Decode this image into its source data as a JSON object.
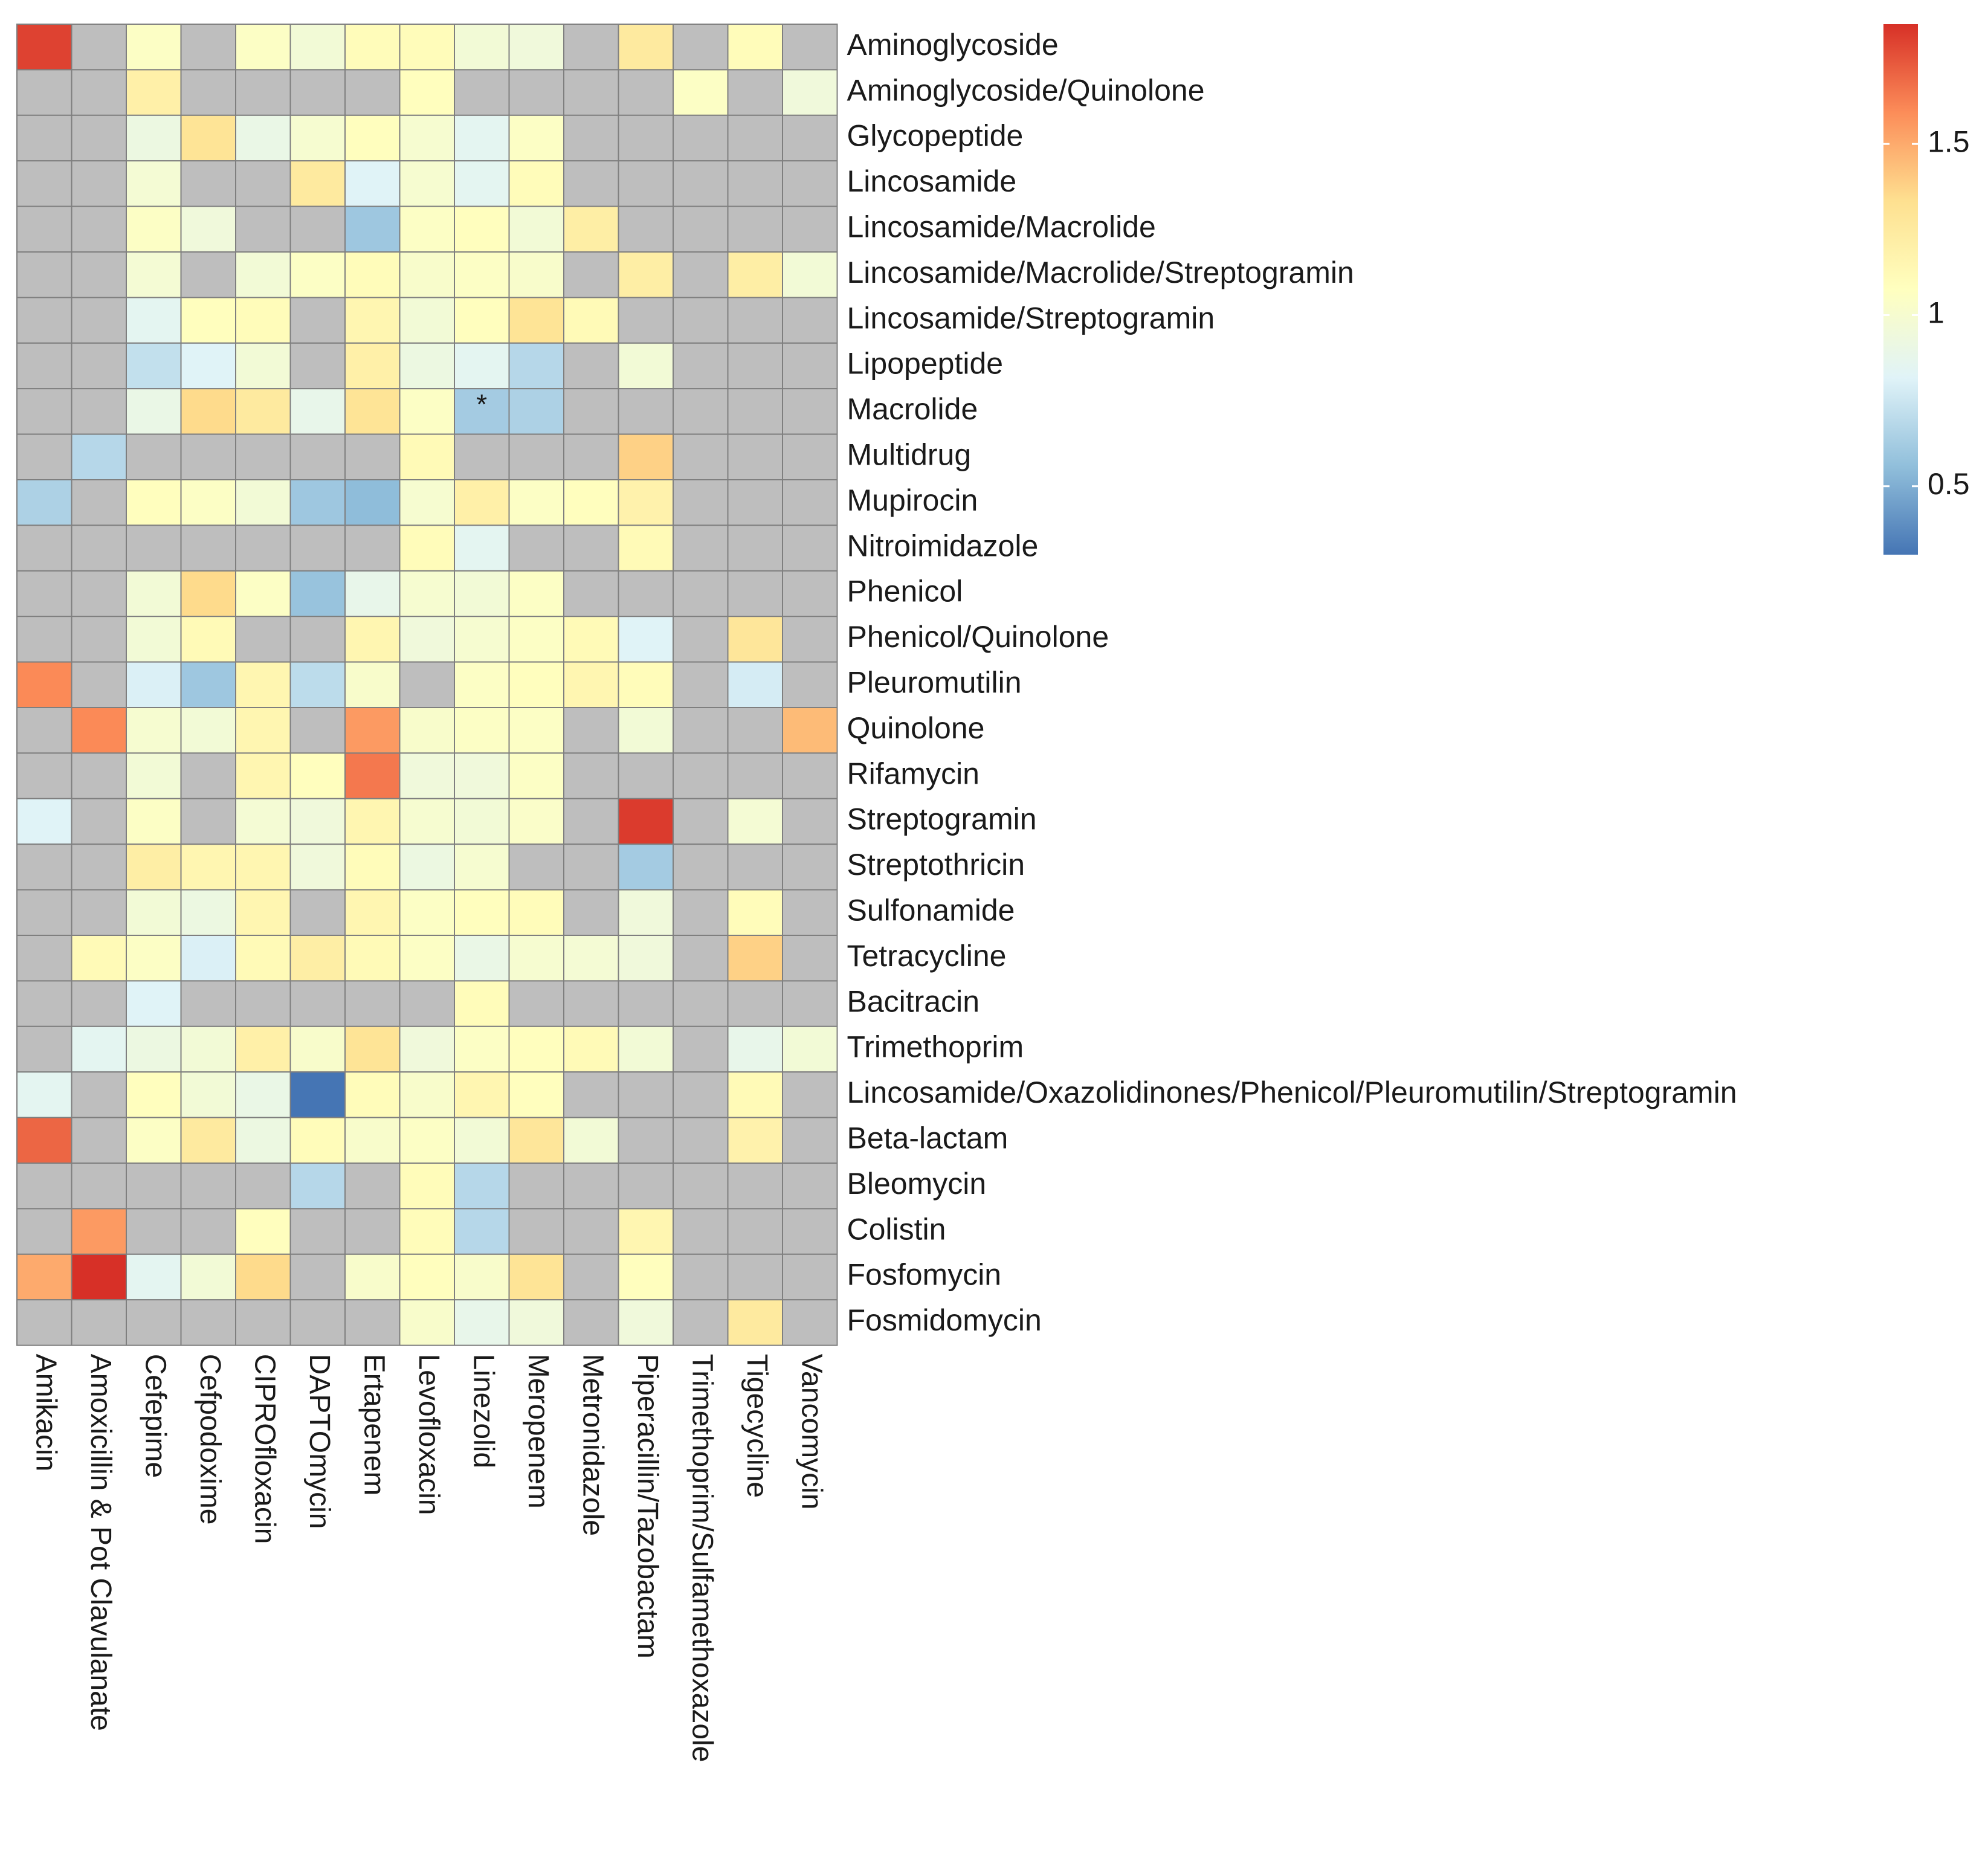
{
  "chart_data": {
    "type": "heatmap",
    "title": "",
    "columns": [
      "Amikacin",
      "Amoxicillin & Pot Clavulanate",
      "Cefepime",
      "Cefpodoxime",
      "CIPROfloxacin",
      "DAPTOmycin",
      "Ertapenem",
      "Levofloxacin",
      "Linezolid",
      "Meropenem",
      "Metronidazole",
      "Piperacillin/Tazobactam",
      "Trimethoprim/Sulfamethoxazole",
      "Tigecycline",
      "Vancomycin"
    ],
    "rows": [
      "Aminoglycoside",
      "Aminoglycoside/Quinolone",
      "Glycopeptide",
      "Lincosamide",
      "Lincosamide/Macrolide",
      "Lincosamide/Macrolide/Streptogramin",
      "Lincosamide/Streptogramin",
      "Lipopeptide",
      "Macrolide",
      "Multidrug",
      "Mupirocin",
      "Nitroimidazole",
      "Phenicol",
      "Phenicol/Quinolone",
      "Pleuromutilin",
      "Quinolone",
      "Rifamycin",
      "Streptogramin",
      "Streptothricin",
      "Sulfonamide",
      "Tetracycline",
      "Bacitracin",
      "Trimethoprim",
      "Lincosamide/Oxazolidinones/Phenicol/Pleuromutilin/Streptogramin",
      "Beta-lactam",
      "Bleomycin",
      "Colistin",
      "Fosfomycin",
      "Fosmidomycin"
    ],
    "values": [
      [
        1.8,
        null,
        1.05,
        null,
        1.05,
        0.97,
        1.1,
        1.1,
        0.97,
        0.95,
        null,
        1.25,
        null,
        1.1,
        null
      ],
      [
        null,
        null,
        1.2,
        null,
        null,
        null,
        null,
        1.08,
        null,
        null,
        null,
        null,
        1.05,
        null,
        0.95
      ],
      [
        null,
        null,
        0.92,
        1.3,
        0.9,
        1.0,
        1.08,
        1.0,
        0.85,
        1.05,
        null,
        null,
        null,
        null,
        null
      ],
      [
        null,
        null,
        0.98,
        null,
        null,
        1.25,
        0.82,
        1.0,
        0.85,
        1.1,
        null,
        null,
        null,
        null,
        null
      ],
      [
        null,
        null,
        1.05,
        0.95,
        null,
        null,
        0.6,
        1.05,
        1.08,
        0.97,
        1.22,
        null,
        null,
        null,
        null
      ],
      [
        null,
        null,
        0.98,
        null,
        0.97,
        1.05,
        1.1,
        1.02,
        1.05,
        1.02,
        null,
        1.22,
        null,
        1.22,
        0.97
      ],
      [
        null,
        null,
        0.85,
        1.08,
        1.1,
        null,
        1.15,
        0.97,
        1.08,
        1.3,
        1.12,
        null,
        null,
        null,
        null
      ],
      [
        null,
        null,
        0.72,
        0.82,
        0.97,
        null,
        1.2,
        0.92,
        0.85,
        0.68,
        null,
        0.97,
        null,
        null,
        null
      ],
      [
        null,
        null,
        0.9,
        1.35,
        1.25,
        0.88,
        1.3,
        1.05,
        0.62,
        0.65,
        null,
        null,
        null,
        null,
        null
      ],
      [
        null,
        0.68,
        null,
        null,
        null,
        null,
        null,
        1.12,
        null,
        null,
        null,
        1.38,
        null,
        null,
        null
      ],
      [
        0.65,
        null,
        1.08,
        1.05,
        0.97,
        0.6,
        0.55,
        1.0,
        1.2,
        1.05,
        1.08,
        1.18,
        null,
        null,
        null
      ],
      [
        null,
        null,
        null,
        null,
        null,
        null,
        null,
        1.1,
        0.85,
        null,
        null,
        1.12,
        null,
        null,
        null
      ],
      [
        null,
        null,
        0.97,
        1.35,
        1.05,
        0.58,
        0.88,
        1.0,
        0.97,
        1.05,
        null,
        null,
        null,
        null,
        null
      ],
      [
        null,
        null,
        0.97,
        1.12,
        null,
        null,
        1.15,
        0.95,
        1.0,
        1.05,
        1.12,
        0.82,
        null,
        1.28,
        null
      ],
      [
        1.6,
        null,
        0.8,
        0.6,
        1.15,
        0.7,
        1.02,
        null,
        1.05,
        1.08,
        1.15,
        1.1,
        null,
        0.78,
        null
      ],
      [
        null,
        1.6,
        1.0,
        0.97,
        1.15,
        null,
        1.55,
        1.02,
        1.05,
        1.05,
        null,
        0.97,
        null,
        null,
        1.45
      ],
      [
        null,
        null,
        0.97,
        null,
        1.15,
        1.08,
        1.65,
        0.95,
        0.95,
        1.05,
        null,
        null,
        null,
        null,
        null
      ],
      [
        0.82,
        null,
        1.05,
        null,
        0.98,
        0.95,
        1.15,
        1.0,
        0.97,
        1.03,
        null,
        1.82,
        null,
        0.98,
        null
      ],
      [
        null,
        null,
        1.22,
        1.15,
        1.15,
        0.95,
        1.1,
        0.92,
        1.0,
        null,
        null,
        0.62,
        null,
        null,
        null
      ],
      [
        null,
        null,
        0.97,
        0.92,
        1.15,
        null,
        1.15,
        1.05,
        1.08,
        1.1,
        null,
        0.95,
        null,
        1.1,
        null
      ],
      [
        null,
        1.12,
        1.05,
        0.8,
        1.12,
        1.22,
        1.12,
        1.05,
        0.9,
        1.0,
        0.98,
        0.95,
        null,
        1.38,
        null
      ],
      [
        null,
        null,
        0.82,
        null,
        null,
        null,
        null,
        null,
        1.1,
        null,
        null,
        null,
        null,
        null,
        null
      ],
      [
        null,
        0.85,
        0.92,
        0.97,
        1.2,
        1.02,
        1.3,
        0.95,
        1.05,
        1.08,
        1.12,
        0.97,
        null,
        0.88,
        0.97
      ],
      [
        0.85,
        null,
        1.08,
        0.97,
        0.9,
        0.3,
        1.1,
        1.02,
        1.15,
        1.08,
        null,
        null,
        null,
        1.12,
        null
      ],
      [
        1.7,
        null,
        1.05,
        1.25,
        0.92,
        1.1,
        1.02,
        1.05,
        0.97,
        1.28,
        0.97,
        null,
        null,
        1.18,
        null
      ],
      [
        null,
        null,
        null,
        null,
        null,
        0.68,
        null,
        1.1,
        0.68,
        null,
        null,
        null,
        null,
        null,
        null
      ],
      [
        null,
        1.55,
        null,
        null,
        1.08,
        null,
        null,
        1.1,
        0.68,
        null,
        null,
        1.15,
        null,
        null,
        null
      ],
      [
        1.5,
        1.85,
        0.85,
        0.97,
        1.35,
        null,
        1.02,
        1.08,
        1.02,
        1.3,
        null,
        1.08,
        null,
        null,
        null
      ],
      [
        null,
        null,
        null,
        null,
        null,
        null,
        null,
        1.02,
        0.88,
        0.95,
        null,
        0.95,
        null,
        1.25,
        null
      ]
    ],
    "annotations": [
      {
        "row": "Macrolide",
        "column": "Linezolid",
        "text": "*"
      }
    ],
    "missing_color": "#bebebe",
    "colorscale": [
      "#4575b4",
      "#91bfdb",
      "#e0f3f8",
      "#ffffbf",
      "#fee090",
      "#fc8d59",
      "#d73027"
    ],
    "colorbar": {
      "min": 0.3,
      "max": 1.85,
      "ticks": [
        0.5,
        1,
        1.5
      ],
      "tick_labels": [
        "0.5",
        "1",
        "1.5"
      ]
    },
    "xlabel": "",
    "ylabel": ""
  }
}
